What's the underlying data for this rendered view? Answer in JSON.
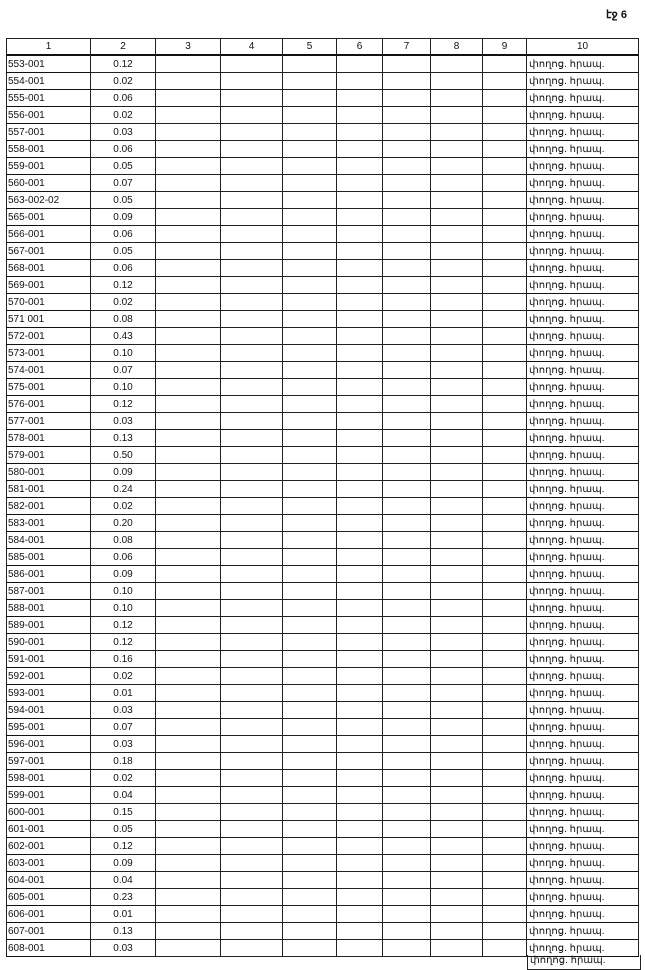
{
  "page_label": "էջ 6",
  "columns": [
    "1",
    "2",
    "3",
    "4",
    "5",
    "6",
    "7",
    "8",
    "9",
    "10"
  ],
  "street_label": "փողոց. հրապ.",
  "rows": [
    [
      "553-001",
      "0.12"
    ],
    [
      "554-001",
      "0.02"
    ],
    [
      "555-001",
      "0.06"
    ],
    [
      "556-001",
      "0.02"
    ],
    [
      "557-001",
      "0.03"
    ],
    [
      "558-001",
      "0.06"
    ],
    [
      "559-001",
      "0.05"
    ],
    [
      "560-001",
      "0.07"
    ],
    [
      "563-002-02",
      "0.05"
    ],
    [
      "565-001",
      "0.09"
    ],
    [
      "566-001",
      "0.06"
    ],
    [
      "567-001",
      "0.05"
    ],
    [
      "568-001",
      "0.06"
    ],
    [
      "569-001",
      "0.12"
    ],
    [
      "570-001",
      "0.02"
    ],
    [
      "571 001",
      "0.08"
    ],
    [
      "572-001",
      "0.43"
    ],
    [
      "573-001",
      "0.10"
    ],
    [
      "574-001",
      "0.07"
    ],
    [
      "575-001",
      "0.10"
    ],
    [
      "576-001",
      "0.12"
    ],
    [
      "577-001",
      "0.03"
    ],
    [
      "578-001",
      "0.13"
    ],
    [
      "579-001",
      "0.50"
    ],
    [
      "580-001",
      "0.09"
    ],
    [
      "581-001",
      "0.24"
    ],
    [
      "582-001",
      "0.02"
    ],
    [
      "583-001",
      "0.20"
    ],
    [
      "584-001",
      "0.08"
    ],
    [
      "585-001",
      "0.06"
    ],
    [
      "586-001",
      "0.09"
    ],
    [
      "587-001",
      "0.10"
    ],
    [
      "588-001",
      "0.10"
    ],
    [
      "589-001",
      "0.12"
    ],
    [
      "590-001",
      "0.12"
    ],
    [
      "591-001",
      "0.16"
    ],
    [
      "592-001",
      "0.02"
    ],
    [
      "593-001",
      "0.01"
    ],
    [
      "594-001",
      "0.03"
    ],
    [
      "595-001",
      "0.07"
    ],
    [
      "596-001",
      "0.03"
    ],
    [
      "597-001",
      "0.18"
    ],
    [
      "598-001",
      "0.02"
    ],
    [
      "599-001",
      "0.04"
    ],
    [
      "600-001",
      "0.15"
    ],
    [
      "601-001",
      "0.05"
    ],
    [
      "602-001",
      "0.12"
    ],
    [
      "603-001",
      "0.09"
    ],
    [
      "604-001",
      "0.04"
    ],
    [
      "605-001",
      "0.23"
    ],
    [
      "606-001",
      "0.01"
    ],
    [
      "607-001",
      "0.13"
    ],
    [
      "608-001",
      "0.03"
    ]
  ]
}
